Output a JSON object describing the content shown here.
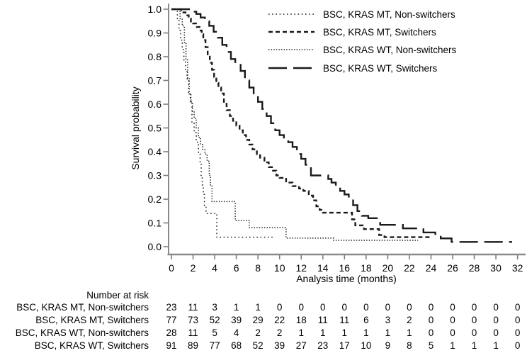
{
  "colors": {
    "background": "#ffffff",
    "curve": "#1a1a1a",
    "axis": "#8a8a8a",
    "tick": "#7d7d7d",
    "text": "#000000"
  },
  "chart_data": {
    "type": "line",
    "variant": "kaplan-meier-step",
    "title": "",
    "xlabel": "Analysis time (months)",
    "ylabel": "Survival probability",
    "xlim": [
      0,
      32
    ],
    "ylim": [
      0.0,
      1.0
    ],
    "grid": false,
    "legend_position": "top-right-inside",
    "x_tick_values": [
      0,
      2,
      4,
      6,
      8,
      10,
      12,
      14,
      16,
      18,
      20,
      22,
      24,
      26,
      28,
      30,
      32
    ],
    "x_tick_labels": [
      "0",
      "2",
      "4",
      "6",
      "8",
      "10",
      "12",
      "14",
      "16",
      "18",
      "20",
      "22",
      "24",
      "26",
      "28",
      "30",
      "32"
    ],
    "y_tick_values": [
      1.0,
      0.9,
      0.8,
      0.7,
      0.6,
      0.5,
      0.4,
      0.3,
      0.2,
      0.1,
      0.0
    ],
    "y_tick_labels": [
      "1.0",
      "0.9",
      "0.8",
      "0.7",
      "0.6",
      "0.5",
      "0.4",
      "0.3",
      "0.2",
      "0.1",
      "0.0"
    ],
    "series": [
      {
        "name": "BSC, KRAS MT, Non-switchers",
        "line_style": "dotted-sparse",
        "points": [
          [
            0,
            1.0
          ],
          [
            0.55,
            0.96
          ],
          [
            0.7,
            0.91
          ],
          [
            0.85,
            0.87
          ],
          [
            1.0,
            0.83
          ],
          [
            1.15,
            0.78
          ],
          [
            1.3,
            0.74
          ],
          [
            1.45,
            0.7
          ],
          [
            1.6,
            0.65
          ],
          [
            1.75,
            0.61
          ],
          [
            1.9,
            0.52
          ],
          [
            2.1,
            0.48
          ],
          [
            2.3,
            0.44
          ],
          [
            2.5,
            0.39
          ],
          [
            2.65,
            0.35
          ],
          [
            2.75,
            0.3
          ],
          [
            2.85,
            0.26
          ],
          [
            2.95,
            0.22
          ],
          [
            3.05,
            0.17
          ],
          [
            3.2,
            0.14
          ],
          [
            4.2,
            0.04
          ],
          [
            9.4,
            0.04
          ]
        ]
      },
      {
        "name": "BSC, KRAS MT, Switchers",
        "line_style": "dashed",
        "points": [
          [
            0,
            1.0
          ],
          [
            0.9,
            0.987
          ],
          [
            1.3,
            0.974
          ],
          [
            1.6,
            0.96
          ],
          [
            1.8,
            0.948
          ],
          [
            2.0,
            0.94
          ],
          [
            2.35,
            0.925
          ],
          [
            2.6,
            0.91
          ],
          [
            2.8,
            0.895
          ],
          [
            2.95,
            0.87
          ],
          [
            3.15,
            0.84
          ],
          [
            3.35,
            0.805
          ],
          [
            3.55,
            0.775
          ],
          [
            3.75,
            0.745
          ],
          [
            3.95,
            0.715
          ],
          [
            4.15,
            0.69
          ],
          [
            4.35,
            0.67
          ],
          [
            4.6,
            0.645
          ],
          [
            4.85,
            0.61
          ],
          [
            5.1,
            0.575
          ],
          [
            5.4,
            0.55
          ],
          [
            5.7,
            0.53
          ],
          [
            6.0,
            0.51
          ],
          [
            6.3,
            0.49
          ],
          [
            6.6,
            0.47
          ],
          [
            6.9,
            0.45
          ],
          [
            7.2,
            0.43
          ],
          [
            7.5,
            0.41
          ],
          [
            7.9,
            0.39
          ],
          [
            8.2,
            0.375
          ],
          [
            8.6,
            0.355
          ],
          [
            9.0,
            0.335
          ],
          [
            9.3,
            0.32
          ],
          [
            9.7,
            0.3
          ],
          [
            10.0,
            0.29
          ],
          [
            10.6,
            0.27
          ],
          [
            11.2,
            0.255
          ],
          [
            11.8,
            0.245
          ],
          [
            12.2,
            0.235
          ],
          [
            12.7,
            0.215
          ],
          [
            13.1,
            0.195
          ],
          [
            13.4,
            0.17
          ],
          [
            13.7,
            0.155
          ],
          [
            14.0,
            0.143
          ],
          [
            16.7,
            0.115
          ],
          [
            17.0,
            0.09
          ],
          [
            17.8,
            0.074
          ],
          [
            19.2,
            0.049
          ],
          [
            19.7,
            0.04
          ],
          [
            24.1,
            0.04
          ]
        ]
      },
      {
        "name": "BSC, KRAS WT, Non-switchers",
        "line_style": "dotted-dense",
        "points": [
          [
            0,
            1.0
          ],
          [
            0.8,
            0.96
          ],
          [
            1.0,
            0.93
          ],
          [
            1.2,
            0.86
          ],
          [
            1.35,
            0.79
          ],
          [
            1.5,
            0.71
          ],
          [
            1.65,
            0.64
          ],
          [
            1.8,
            0.61
          ],
          [
            1.95,
            0.57
          ],
          [
            2.1,
            0.54
          ],
          [
            2.3,
            0.5
          ],
          [
            2.5,
            0.46
          ],
          [
            2.7,
            0.43
          ],
          [
            2.9,
            0.41
          ],
          [
            3.1,
            0.39
          ],
          [
            3.3,
            0.36
          ],
          [
            3.5,
            0.3
          ],
          [
            3.6,
            0.26
          ],
          [
            3.75,
            0.19
          ],
          [
            5.9,
            0.11
          ],
          [
            7.2,
            0.08
          ],
          [
            10.6,
            0.036
          ],
          [
            15.0,
            0.027
          ],
          [
            22.8,
            0.027
          ]
        ]
      },
      {
        "name": "BSC, KRAS WT, Switchers",
        "line_style": "long-dash",
        "points": [
          [
            0,
            1.0
          ],
          [
            1.9,
            0.99
          ],
          [
            2.3,
            0.98
          ],
          [
            2.7,
            0.965
          ],
          [
            3.1,
            0.95
          ],
          [
            3.5,
            0.93
          ],
          [
            3.9,
            0.905
          ],
          [
            4.3,
            0.88
          ],
          [
            4.7,
            0.85
          ],
          [
            5.1,
            0.82
          ],
          [
            5.5,
            0.79
          ],
          [
            5.9,
            0.77
          ],
          [
            6.4,
            0.74
          ],
          [
            6.8,
            0.7
          ],
          [
            7.2,
            0.67
          ],
          [
            7.6,
            0.64
          ],
          [
            8.0,
            0.61
          ],
          [
            8.4,
            0.58
          ],
          [
            8.8,
            0.55
          ],
          [
            9.2,
            0.52
          ],
          [
            9.6,
            0.49
          ],
          [
            10.0,
            0.47
          ],
          [
            10.4,
            0.45
          ],
          [
            10.8,
            0.44
          ],
          [
            11.2,
            0.42
          ],
          [
            11.6,
            0.39
          ],
          [
            12.0,
            0.37
          ],
          [
            12.4,
            0.345
          ],
          [
            12.9,
            0.3
          ],
          [
            14.5,
            0.285
          ],
          [
            14.8,
            0.27
          ],
          [
            15.2,
            0.25
          ],
          [
            15.6,
            0.235
          ],
          [
            16.0,
            0.22
          ],
          [
            16.4,
            0.2
          ],
          [
            16.8,
            0.175
          ],
          [
            17.2,
            0.15
          ],
          [
            17.6,
            0.13
          ],
          [
            18.2,
            0.12
          ],
          [
            19.3,
            0.092
          ],
          [
            21.4,
            0.077
          ],
          [
            23.3,
            0.06
          ],
          [
            24.4,
            0.047
          ],
          [
            24.9,
            0.035
          ],
          [
            25.9,
            0.02
          ],
          [
            31.5,
            0.02
          ]
        ]
      }
    ]
  },
  "legend": {
    "items": [
      {
        "label": "BSC, KRAS MT, Non-switchers",
        "line_style": "dotted-sparse"
      },
      {
        "label": "BSC, KRAS MT, Switchers",
        "line_style": "dashed"
      },
      {
        "label": "BSC, KRAS WT, Non-switchers",
        "line_style": "dotted-dense"
      },
      {
        "label": "BSC, KRAS WT, Switchers",
        "line_style": "long-dash"
      }
    ]
  },
  "risk_table": {
    "header": "Number at risk",
    "times": [
      0,
      2,
      4,
      6,
      8,
      10,
      12,
      14,
      16,
      18,
      20,
      22,
      24,
      26,
      28,
      30,
      32
    ],
    "rows": [
      {
        "label": "BSC, KRAS MT, Non-switchers",
        "counts": [
          23,
          11,
          3,
          1,
          1,
          0,
          0,
          0,
          0,
          0,
          0,
          0,
          0,
          0,
          0,
          0,
          0
        ]
      },
      {
        "label": "BSC, KRAS MT, Switchers",
        "counts": [
          77,
          73,
          52,
          39,
          29,
          22,
          18,
          11,
          11,
          6,
          3,
          2,
          0,
          0,
          0,
          0,
          0
        ]
      },
      {
        "label": "BSC, KRAS WT, Non-switchers",
        "counts": [
          28,
          11,
          5,
          4,
          2,
          2,
          1,
          1,
          1,
          1,
          1,
          1,
          0,
          0,
          0,
          0,
          0
        ]
      },
      {
        "label": "BSC, KRAS WT, Switchers",
        "counts": [
          91,
          89,
          77,
          68,
          52,
          39,
          27,
          23,
          17,
          10,
          9,
          8,
          5,
          1,
          1,
          1,
          0
        ]
      }
    ]
  }
}
